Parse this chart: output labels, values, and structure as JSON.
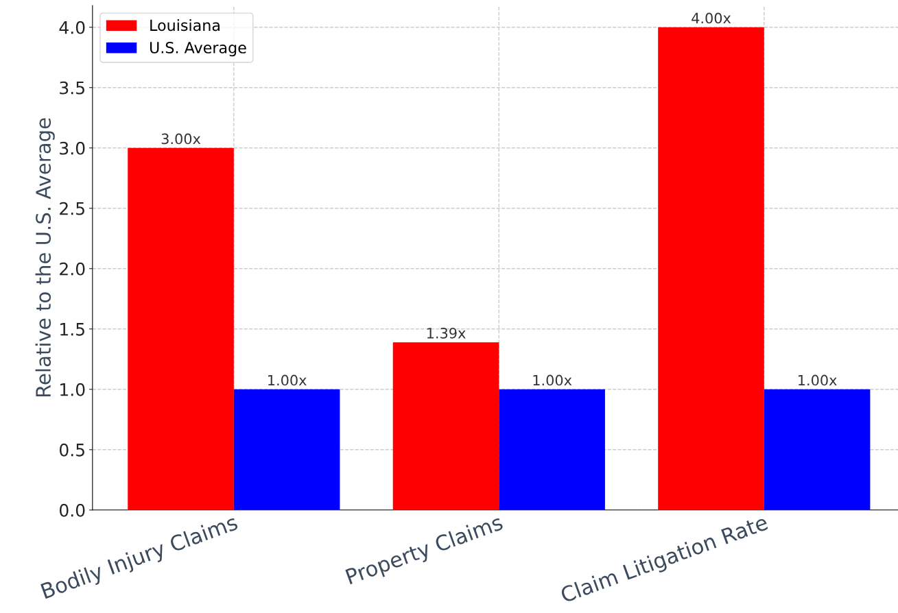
{
  "chart_data": {
    "type": "bar",
    "ylabel": "Relative to the U.S. Average",
    "categories": [
      "Bodily Injury Claims",
      "Property Claims",
      "Claim Litigation Rate"
    ],
    "series": [
      {
        "name": "Louisiana",
        "color": "#ff0000",
        "values": [
          3.0,
          1.39,
          4.0
        ],
        "value_labels": [
          "3.00x",
          "1.39x",
          "4.00x"
        ]
      },
      {
        "name": "U.S. Average",
        "color": "#0000ff",
        "values": [
          1.0,
          1.0,
          1.0
        ],
        "value_labels": [
          "1.00x",
          "1.00x",
          "1.00x"
        ]
      }
    ],
    "ylim": [
      0,
      4.18
    ],
    "yticks": [
      {
        "value": 0,
        "label": "0.0"
      },
      0.5,
      {
        "value": 1,
        "label": "1.0"
      },
      1.5,
      {
        "value": 2,
        "label": "2.0"
      },
      2.5,
      {
        "value": 3,
        "label": "3.0"
      },
      3.5,
      {
        "value": 4,
        "label": "4.0"
      }
    ],
    "grid": true,
    "legend": "top left"
  }
}
